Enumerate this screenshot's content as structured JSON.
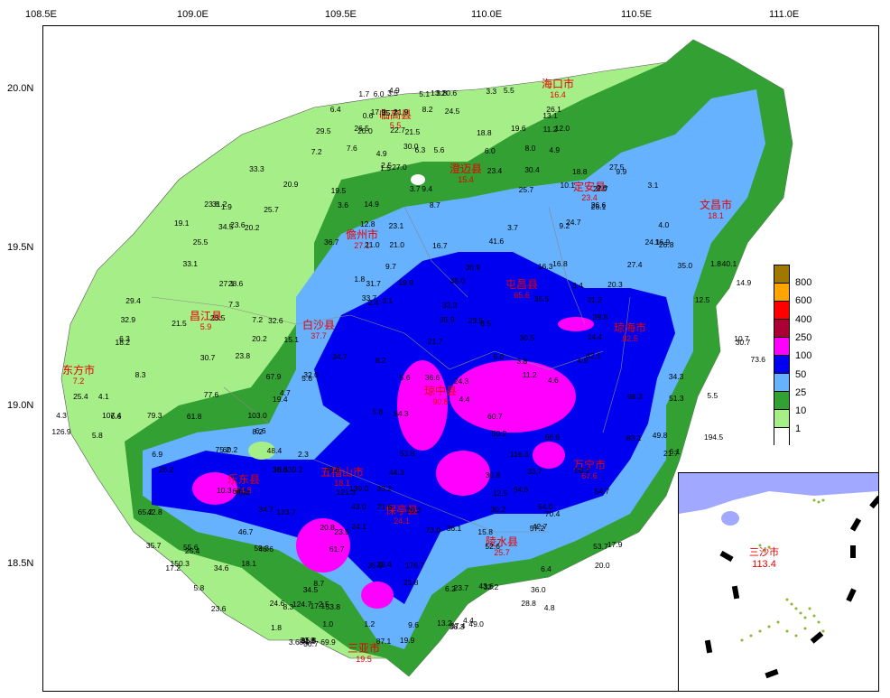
{
  "axes": {
    "lon_ticks": [
      "108.5E",
      "109.0E",
      "109.5E",
      "110.0E",
      "110.5E",
      "111.0E"
    ],
    "lat_ticks": [
      "20.0N",
      "19.5N",
      "19.0N",
      "18.5N"
    ]
  },
  "legend": {
    "levels": [
      "800",
      "600",
      "400",
      "250",
      "100",
      "50",
      "25",
      "10",
      "1"
    ],
    "colors": [
      "#a07800",
      "#ffa500",
      "#ff0000",
      "#aa0033",
      "#ff00ff",
      "#0000f0",
      "#66b2ff",
      "#33a033",
      "#a6ee88",
      "#ffffff"
    ]
  },
  "cities": [
    {
      "name": "海口市",
      "value": "16.4"
    },
    {
      "name": "临高县",
      "value": "5.5"
    },
    {
      "name": "澄迈县",
      "value": "15.4"
    },
    {
      "name": "定安县",
      "value": "23.4"
    },
    {
      "name": "文昌市",
      "value": "18.1"
    },
    {
      "name": "儋州市",
      "value": "27.1"
    },
    {
      "name": "屯昌县",
      "value": "65.6"
    },
    {
      "name": "昌江县",
      "value": "5.9"
    },
    {
      "name": "白沙县",
      "value": "37.7"
    },
    {
      "name": "琼海市",
      "value": "82.5"
    },
    {
      "name": "东方市",
      "value": "7.2"
    },
    {
      "name": "琼中县",
      "value": "90.8"
    },
    {
      "name": "万宁市",
      "value": "67.6"
    },
    {
      "name": "乐东县",
      "value": "84.8"
    },
    {
      "name": "五指山市",
      "value": "18.1"
    },
    {
      "name": "保亭县",
      "value": "24.1"
    },
    {
      "name": "陵水县",
      "value": "25.7"
    },
    {
      "name": "三亚市",
      "value": "19.5"
    }
  ],
  "stations": [
    "0.6",
    "4.9",
    "3.8",
    "5.5",
    "5.1",
    "3.3",
    "1.7",
    "3.5",
    "6.0",
    "13.2",
    "6.4",
    "13.1",
    "8.2",
    "0.6",
    "24.5",
    "35.7",
    "26.1",
    "17.9",
    "21.9",
    "19.6",
    "22.7",
    "12.0",
    "11.2",
    "20.0",
    "21.5",
    "18.8",
    "26.5",
    "29.5",
    "30.0",
    "6.0",
    "4.9",
    "5.6",
    "4.9",
    "6.3",
    "7.6",
    "7.2",
    "8.0",
    "9.9",
    "18.8",
    "23.4",
    "33.3",
    "1.5",
    "27.0",
    "30.4",
    "27.5",
    "2.5",
    "3.7",
    "3.1",
    "2.6",
    "9.4",
    "10.1",
    "19.5",
    "20.9",
    "25.7",
    "27.7",
    "26.6",
    "31.2",
    "23.8",
    "26.1",
    "25.7",
    "1.9",
    "8.7",
    "14.9",
    "3.6",
    "20.2",
    "19.1",
    "34.5",
    "23.6",
    "23.1",
    "24.7",
    "9.2",
    "4.0",
    "3.7",
    "12.8",
    "24.1",
    "25.5",
    "36.7",
    "41.6",
    "21.0",
    "26.8",
    "21.0",
    "16.9",
    "16.7",
    "16.3",
    "1.8",
    "9.7",
    "16.8",
    "35.0",
    "40.1",
    "27.4",
    "33.1",
    "36.9",
    "31.7",
    "20.3",
    "19.9",
    "3.4",
    "1.8",
    "14.9",
    "27.1",
    "28.6",
    "45.0",
    "29.4",
    "33.3",
    "33.7",
    "35.5",
    "21.2",
    "12.5",
    "2.4",
    "7.3",
    "3.1",
    "8.5",
    "23.5",
    "32.6",
    "35.9",
    "32.9",
    "39.8",
    "23.5",
    "21.5",
    "7.2",
    "6.3",
    "14.4",
    "18.2",
    "15.1",
    "20.2",
    "21.7",
    "30.5",
    "30.7",
    "10.7",
    "8.2",
    "23.8",
    "42.1",
    "73.6",
    "34.7",
    "30.7",
    "3.8",
    "4.9",
    "5.0",
    "11.2",
    "24.3",
    "67.9",
    "36.6",
    "32.0",
    "4.6",
    "5.6",
    "5.6",
    "8.3",
    "34.3",
    "51.3",
    "68.3",
    "4.1",
    "19.4",
    "77.6",
    "4.7",
    "5.5",
    "4.4",
    "25.4",
    "79.3",
    "103.0",
    "64.3",
    "61.8",
    "60.7",
    "107.4",
    "5.8",
    "4.3",
    "6.6",
    "8.2",
    "50.2",
    "83.1",
    "126.9",
    "194.5",
    "66.6",
    "49.8",
    "6.6",
    "5.8",
    "2.3",
    "6.1",
    "6.9",
    "116.3",
    "75.2",
    "48.4",
    "60.2",
    "51.8",
    "21.7",
    "30.2",
    "26.2",
    "18.5",
    "36.0",
    "79.6",
    "50.2",
    "44.3",
    "30.8",
    "33.7",
    "64.1",
    "70.4",
    "121.3",
    "54.7",
    "33.2",
    "10.3",
    "12.5",
    "64.6",
    "139.0",
    "65.2",
    "34.7",
    "43.0",
    "123.7",
    "21.6",
    "20.2",
    "54.0",
    "30.2",
    "42.8",
    "70.4",
    "46.7",
    "20.8",
    "15.8",
    "23.5",
    "57.2",
    "42.7",
    "73.0",
    "36.1",
    "24.1",
    "55.6",
    "59.3",
    "17.9",
    "46.6",
    "53.7",
    "52.6",
    "61.7",
    "25.4",
    "35.7",
    "6.4",
    "17.2",
    "18.1",
    "20.0",
    "150.3",
    "176.7",
    "34.6",
    "35.9",
    "29.4",
    "21.8",
    "23.7",
    "34.5",
    "6.2",
    "5.8",
    "8.7",
    "43.6",
    "32.2",
    "36.0",
    "24.6",
    "17.1",
    "53.8",
    "124.7",
    "28.8",
    "23.6",
    "2.5",
    "4.8",
    "8.3",
    "13.2",
    "49.0",
    "1.0",
    "37.4",
    "38.3",
    "9.6",
    "4.4",
    "1.8",
    "1.2",
    "8.0",
    "69.9",
    "61.5",
    "15.8",
    "87.1",
    "3.6",
    "30.7",
    "30.8",
    "19.9"
  ],
  "inset": {
    "city": "三沙市",
    "value": "113.4"
  }
}
